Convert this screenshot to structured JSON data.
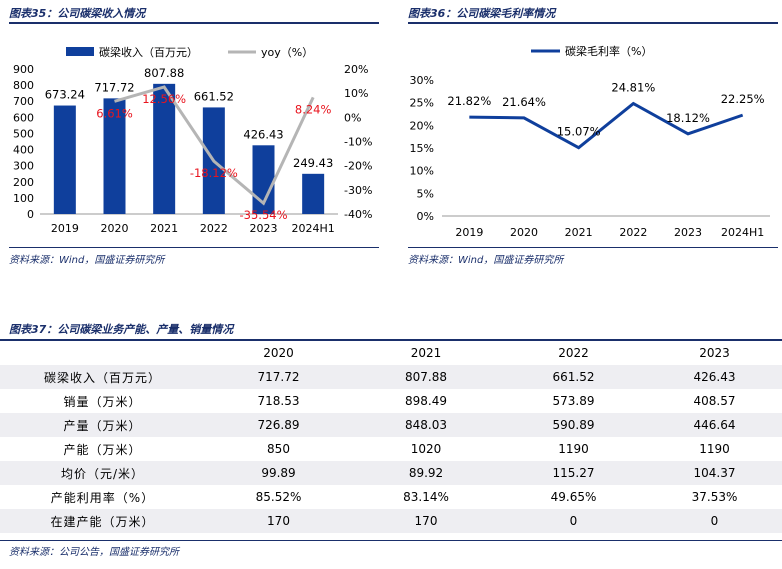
{
  "fig35": {
    "title": "图表35：公司碳梁收入情况",
    "source": "资料来源：Wind，国盛证券研究所"
  },
  "fig36": {
    "title": "图表36：公司碳梁毛利率情况",
    "source": "资料来源：Wind，国盛证券研究所"
  },
  "fig37": {
    "title": "图表37：公司碳梁业务产能、产量、销量情况",
    "source": "资料来源：公司公告，国盛证券研究所",
    "columns": [
      "",
      "2020",
      "2021",
      "2022",
      "2023"
    ],
    "rows": [
      {
        "label": "碳梁收入（百万元）",
        "values": [
          "717.72",
          "807.88",
          "661.52",
          "426.43"
        ]
      },
      {
        "label": "销量（万米）",
        "values": [
          "718.53",
          "898.49",
          "573.89",
          "408.57"
        ]
      },
      {
        "label": "产量（万米）",
        "values": [
          "726.89",
          "848.03",
          "590.89",
          "446.64"
        ]
      },
      {
        "label": "产能（万米）",
        "values": [
          "850",
          "1020",
          "1190",
          "1190"
        ]
      },
      {
        "label": "均价（元/米）",
        "values": [
          "99.89",
          "89.92",
          "115.27",
          "104.37"
        ]
      },
      {
        "label": "产能利用率（%）",
        "values": [
          "85.52%",
          "83.14%",
          "49.65%",
          "37.53%"
        ]
      },
      {
        "label": "在建产能（万米）",
        "values": [
          "170",
          "170",
          "0",
          "0"
        ]
      }
    ]
  },
  "chart_data": [
    {
      "type": "bar+line",
      "title": "",
      "categories": [
        "2019",
        "2020",
        "2021",
        "2022",
        "2023",
        "2024H1"
      ],
      "series": [
        {
          "name": "碳梁收入（百万元）",
          "type": "bar",
          "axis": "left",
          "color": "#0f3f9c",
          "values": [
            673.24,
            717.72,
            807.88,
            661.52,
            426.43,
            249.43
          ],
          "labels": [
            "673.24",
            "717.72",
            "807.88",
            "661.52",
            "426.43",
            "249.43"
          ]
        },
        {
          "name": "yoy（%）",
          "type": "line",
          "axis": "right",
          "color": "#b5b5b5",
          "values": [
            null,
            6.61,
            12.56,
            -18.12,
            -35.54,
            8.24
          ],
          "labels": [
            "",
            "6.61%",
            "12.56%",
            "-18.12%",
            "-35.54%",
            "8.24%"
          ],
          "label_color": "#e8141e"
        }
      ],
      "y_left": {
        "min": 0,
        "max": 900,
        "ticks": [
          "0",
          "100",
          "200",
          "300",
          "400",
          "500",
          "600",
          "700",
          "800",
          "900"
        ]
      },
      "y_right": {
        "min": -40,
        "max": 20,
        "ticks": [
          "-40%",
          "-30%",
          "-20%",
          "-10%",
          "0%",
          "10%",
          "20%"
        ]
      },
      "legend": "top"
    },
    {
      "type": "line",
      "title": "",
      "categories": [
        "2019",
        "2020",
        "2021",
        "2022",
        "2023",
        "2024H1"
      ],
      "series": [
        {
          "name": "碳梁毛利率（%）",
          "color": "#0f3f9c",
          "values": [
            21.82,
            21.64,
            15.07,
            24.81,
            18.12,
            22.25
          ],
          "labels": [
            "21.82%",
            "21.64%",
            "15.07%",
            "24.81%",
            "18.12%",
            "22.25%"
          ]
        }
      ],
      "y": {
        "min": 0,
        "max": 30,
        "ticks": [
          "0%",
          "5%",
          "10%",
          "15%",
          "20%",
          "25%",
          "30%"
        ]
      },
      "legend": "top"
    }
  ]
}
